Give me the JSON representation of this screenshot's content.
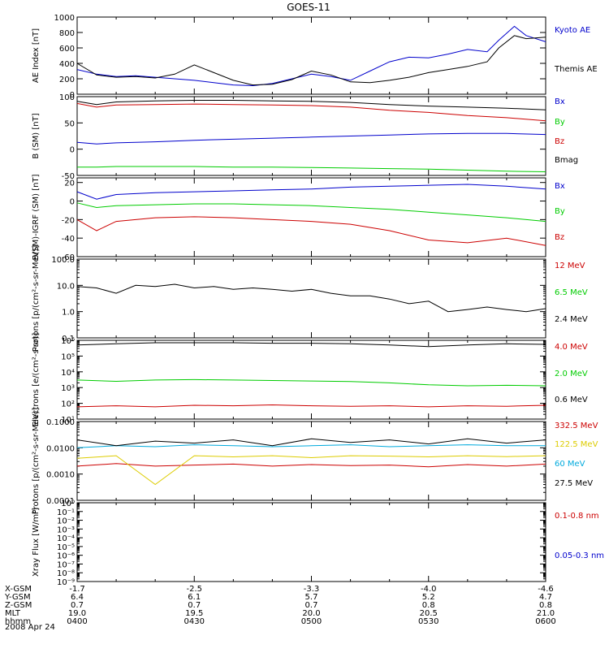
{
  "title": "GOES-11",
  "date_label": "2008 Apr 24",
  "time_axis": {
    "start": "0400",
    "end": "0600",
    "tick_times": [
      "0400",
      "0430",
      "0500",
      "0530",
      "0600"
    ]
  },
  "orbit_table": {
    "rows": [
      {
        "label": "X-GSM",
        "values": [
          "-1.7",
          "-2.5",
          "-3.3",
          "-4.0",
          "-4.6"
        ]
      },
      {
        "label": "Y-GSM",
        "values": [
          "6.4",
          "6.1",
          "5.7",
          "5.2",
          "4.7"
        ]
      },
      {
        "label": "Z-GSM",
        "values": [
          "0.7",
          "0.7",
          "0.7",
          "0.8",
          "0.8"
        ]
      },
      {
        "label": "MLT",
        "values": [
          "19.0",
          "19.5",
          "20.0",
          "20.5",
          "21.0"
        ]
      },
      {
        "label": "hhmm",
        "values": [
          "0400",
          "0430",
          "0500",
          "0530",
          "0600"
        ]
      }
    ]
  },
  "chart_data": [
    {
      "type": "line",
      "panel": "ae",
      "ylabel": "AE Index [nT]",
      "yscale": "linear",
      "ylim": [
        0,
        1000
      ],
      "yticks": [
        0,
        200,
        400,
        600,
        800,
        1000
      ],
      "yticklabels": [
        "0",
        "200",
        "400",
        "600",
        "800",
        "1000"
      ],
      "series": [
        {
          "name": "Kyoto AE",
          "color": "#0000cc",
          "x": [
            "0400",
            "0405",
            "0410",
            "0415",
            "0420",
            "0425",
            "0430",
            "0435",
            "0440",
            "0445",
            "0450",
            "0455",
            "0500",
            "0505",
            "0510",
            "0515",
            "0520",
            "0525",
            "0530",
            "0535",
            "0540",
            "0545",
            "0548",
            "0552",
            "0555",
            "0600"
          ],
          "values": [
            320,
            260,
            230,
            240,
            220,
            200,
            180,
            150,
            120,
            110,
            140,
            200,
            260,
            230,
            180,
            300,
            420,
            480,
            470,
            520,
            580,
            550,
            700,
            880,
            760,
            680
          ]
        },
        {
          "name": "Themis AE",
          "color": "#000000",
          "x": [
            "0400",
            "0405",
            "0410",
            "0415",
            "0420",
            "0425",
            "0430",
            "0435",
            "0440",
            "0445",
            "0450",
            "0455",
            "0500",
            "0505",
            "0510",
            "0515",
            "0520",
            "0525",
            "0530",
            "0535",
            "0540",
            "0545",
            "0548",
            "0552",
            "0555",
            "0600"
          ],
          "values": [
            400,
            250,
            220,
            230,
            210,
            260,
            380,
            280,
            180,
            120,
            130,
            190,
            300,
            250,
            160,
            150,
            180,
            220,
            280,
            320,
            360,
            420,
            600,
            760,
            720,
            740
          ]
        }
      ]
    },
    {
      "type": "line",
      "panel": "b_sm",
      "ylabel": "B (SM) [nT]",
      "yscale": "linear",
      "ylim": [
        -50,
        100
      ],
      "yticks": [
        -50,
        0,
        50,
        100
      ],
      "yticklabels": [
        "-50",
        "0",
        "50",
        "100"
      ],
      "series": [
        {
          "name": "Bx",
          "color": "#0000cc",
          "x": [
            "0400",
            "0405",
            "0410",
            "0420",
            "0430",
            "0440",
            "0450",
            "0500",
            "0510",
            "0520",
            "0530",
            "0540",
            "0550",
            "0600"
          ],
          "values": [
            13,
            10,
            12,
            14,
            17,
            19,
            21,
            23,
            25,
            27,
            29,
            30,
            30,
            28
          ]
        },
        {
          "name": "By",
          "color": "#00cc00",
          "x": [
            "0400",
            "0405",
            "0410",
            "0420",
            "0430",
            "0440",
            "0450",
            "0500",
            "0510",
            "0520",
            "0530",
            "0540",
            "0550",
            "0600"
          ],
          "values": [
            -34,
            -34,
            -33,
            -33,
            -33,
            -34,
            -34,
            -35,
            -36,
            -37,
            -38,
            -40,
            -42,
            -43
          ]
        },
        {
          "name": "Bz",
          "color": "#cc0000",
          "x": [
            "0400",
            "0405",
            "0410",
            "0420",
            "0430",
            "0440",
            "0450",
            "0500",
            "0510",
            "0520",
            "0530",
            "0540",
            "0550",
            "0600"
          ],
          "values": [
            87,
            80,
            84,
            85,
            86,
            85,
            84,
            83,
            80,
            74,
            70,
            64,
            60,
            54
          ]
        },
        {
          "name": "Bmag",
          "color": "#000000",
          "x": [
            "0400",
            "0405",
            "0410",
            "0420",
            "0430",
            "0440",
            "0450",
            "0500",
            "0510",
            "0520",
            "0530",
            "0540",
            "0550",
            "0600"
          ],
          "values": [
            91,
            85,
            90,
            92,
            93,
            93,
            92,
            91,
            89,
            85,
            82,
            80,
            78,
            75
          ]
        }
      ]
    },
    {
      "type": "line",
      "panel": "b_minus_igrf",
      "ylabel": "B(SM)-IGRF (SM) [nT]",
      "yscale": "linear",
      "ylim": [
        -60,
        25
      ],
      "yticks": [
        -60,
        -40,
        -20,
        0,
        20
      ],
      "yticklabels": [
        "-60",
        "-40",
        "-20",
        "0",
        "20"
      ],
      "series": [
        {
          "name": "Bx",
          "color": "#0000cc",
          "x": [
            "0400",
            "0405",
            "0410",
            "0420",
            "0430",
            "0440",
            "0450",
            "0500",
            "0510",
            "0520",
            "0530",
            "0540",
            "0550",
            "0600"
          ],
          "values": [
            10,
            2,
            7,
            9,
            10,
            11,
            12,
            13,
            15,
            16,
            17,
            18,
            16,
            13
          ]
        },
        {
          "name": "By",
          "color": "#00cc00",
          "x": [
            "0400",
            "0405",
            "0410",
            "0420",
            "0430",
            "0440",
            "0450",
            "0500",
            "0510",
            "0520",
            "0530",
            "0540",
            "0550",
            "0600"
          ],
          "values": [
            -2,
            -7,
            -5,
            -4,
            -3,
            -3,
            -4,
            -5,
            -7,
            -9,
            -12,
            -15,
            -18,
            -22
          ]
        },
        {
          "name": "Bz",
          "color": "#cc0000",
          "x": [
            "0400",
            "0405",
            "0410",
            "0420",
            "0430",
            "0440",
            "0450",
            "0500",
            "0510",
            "0520",
            "0530",
            "0540",
            "0550",
            "0600"
          ],
          "values": [
            -20,
            -32,
            -22,
            -18,
            -17,
            -18,
            -20,
            -22,
            -25,
            -32,
            -42,
            -45,
            -40,
            -48
          ]
        }
      ]
    },
    {
      "type": "line",
      "panel": "protons_eps",
      "ylabel": "Protons [p/(cm²-s-sr-MeV)]",
      "yscale": "log",
      "ylim": [
        0.1,
        100
      ],
      "yticks": [
        0.1,
        1,
        10,
        100
      ],
      "yticklabels": [
        "0.1",
        "1.0",
        "10.0",
        "100.0"
      ],
      "series": [
        {
          "name": "12 MeV",
          "color": "#cc0000",
          "x": [],
          "values": []
        },
        {
          "name": "6.5 MeV",
          "color": "#00cc00",
          "x": [],
          "values": []
        },
        {
          "name": "2.4 MeV",
          "color": "#000000",
          "x": [
            "0400",
            "0405",
            "0410",
            "0415",
            "0420",
            "0425",
            "0430",
            "0435",
            "0440",
            "0445",
            "0450",
            "0455",
            "0500",
            "0505",
            "0510",
            "0515",
            "0520",
            "0525",
            "0530",
            "0535",
            "0540",
            "0545",
            "0550",
            "0555",
            "0600"
          ],
          "values": [
            9,
            8,
            5,
            10,
            9,
            11,
            8,
            9,
            7,
            8,
            7,
            6,
            7,
            5,
            4,
            4,
            3,
            2,
            2.5,
            1,
            1.2,
            1.5,
            1.2,
            1.0,
            1.3
          ]
        }
      ]
    },
    {
      "type": "line",
      "panel": "electrons",
      "ylabel": "Electrons [e/(cm²-s-sr)]",
      "yscale": "log",
      "ylim": [
        10,
        1000000
      ],
      "yticks": [
        10,
        100,
        1000,
        10000,
        100000,
        1000000
      ],
      "yticklabels": [
        "10¹",
        "10²",
        "10³",
        "10⁴",
        "10⁵",
        "10⁶"
      ],
      "series": [
        {
          "name": "4.0 MeV",
          "color": "#cc0000",
          "x": [
            "0400",
            "0410",
            "0420",
            "0430",
            "0440",
            "0450",
            "0500",
            "0510",
            "0520",
            "0530",
            "0540",
            "0550",
            "0600"
          ],
          "values": [
            60,
            70,
            60,
            75,
            70,
            80,
            70,
            65,
            70,
            60,
            70,
            65,
            75
          ]
        },
        {
          "name": "2.0 MeV",
          "color": "#00cc00",
          "x": [
            "0400",
            "0410",
            "0420",
            "0430",
            "0440",
            "0450",
            "0500",
            "0510",
            "0520",
            "0530",
            "0540",
            "0550",
            "0600"
          ],
          "values": [
            3000,
            2500,
            3000,
            3200,
            3000,
            2800,
            2600,
            2400,
            2000,
            1500,
            1300,
            1400,
            1300
          ]
        },
        {
          "name": "0.6 MeV",
          "color": "#000000",
          "x": [
            "0400",
            "0410",
            "0420",
            "0430",
            "0440",
            "0450",
            "0500",
            "0510",
            "0520",
            "0530",
            "0540",
            "0550",
            "0600"
          ],
          "values": [
            500000,
            600000,
            700000,
            700000,
            700000,
            650000,
            650000,
            600000,
            500000,
            400000,
            500000,
            600000,
            550000
          ]
        }
      ]
    },
    {
      "type": "line",
      "panel": "protons_hepad",
      "ylabel": "Protons [p/(cm²-s-sr-MeV)]",
      "yscale": "log",
      "ylim": [
        0.0001,
        0.1
      ],
      "yticks": [
        0.0001,
        0.001,
        0.01,
        0.1
      ],
      "yticklabels": [
        "0.0001",
        "0.0010",
        "0.0100",
        "0.1000"
      ],
      "series": [
        {
          "name": "332.5 MeV",
          "color": "#cc0000",
          "x": [
            "0400",
            "0410",
            "0420",
            "0430",
            "0440",
            "0450",
            "0500",
            "0510",
            "0520",
            "0530",
            "0540",
            "0550",
            "0600"
          ],
          "values": [
            0.002,
            0.0025,
            0.002,
            0.0022,
            0.0024,
            0.002,
            0.0023,
            0.0021,
            0.0022,
            0.0019,
            0.0023,
            0.002,
            0.0024
          ]
        },
        {
          "name": "122.5 MeV",
          "color": "#ddcc00",
          "x": [
            "0400",
            "0410",
            "0420",
            "0430",
            "0440",
            "0450",
            "0500",
            "0510",
            "0520",
            "0530",
            "0540",
            "0550",
            "0600"
          ],
          "values": [
            0.004,
            0.005,
            0.0004,
            0.005,
            0.0045,
            0.005,
            0.0042,
            0.005,
            0.0048,
            0.0045,
            0.005,
            0.0046,
            0.005
          ]
        },
        {
          "name": "60 MeV",
          "color": "#00aadd",
          "x": [
            "0400",
            "0410",
            "0420",
            "0430",
            "0440",
            "0450",
            "0500",
            "0510",
            "0520",
            "0530",
            "0540",
            "0550",
            "0600"
          ],
          "values": [
            0.01,
            0.012,
            0.011,
            0.013,
            0.012,
            0.011,
            0.012,
            0.013,
            0.011,
            0.012,
            0.013,
            0.012,
            0.012
          ]
        },
        {
          "name": "27.5 MeV",
          "color": "#000000",
          "x": [
            "0400",
            "0410",
            "0420",
            "0430",
            "0440",
            "0450",
            "0500",
            "0510",
            "0520",
            "0530",
            "0540",
            "0550",
            "0600"
          ],
          "values": [
            0.02,
            0.012,
            0.018,
            0.015,
            0.02,
            0.012,
            0.022,
            0.016,
            0.02,
            0.014,
            0.022,
            0.015,
            0.02
          ]
        }
      ]
    },
    {
      "type": "line",
      "panel": "xray",
      "ylabel": "Xray Flux [W/m²]",
      "yscale": "log",
      "ylim": [
        1e-09,
        1
      ],
      "yticks": [
        1e-09,
        1e-08,
        1e-07,
        1e-06,
        1e-05,
        0.0001,
        0.001,
        0.01,
        0.1,
        1
      ],
      "yticklabels": [
        "10⁻⁹",
        "10⁻⁸",
        "10⁻⁷",
        "10⁻⁶",
        "10⁻⁵",
        "10⁻⁴",
        "10⁻³",
        "10⁻²",
        "10⁻¹",
        "10⁰"
      ],
      "series": [
        {
          "name": "0.1-0.8 nm",
          "color": "#cc0000",
          "x": [],
          "values": []
        },
        {
          "name": "0.05-0.3 nm",
          "color": "#0000cc",
          "x": [],
          "values": []
        }
      ]
    }
  ]
}
